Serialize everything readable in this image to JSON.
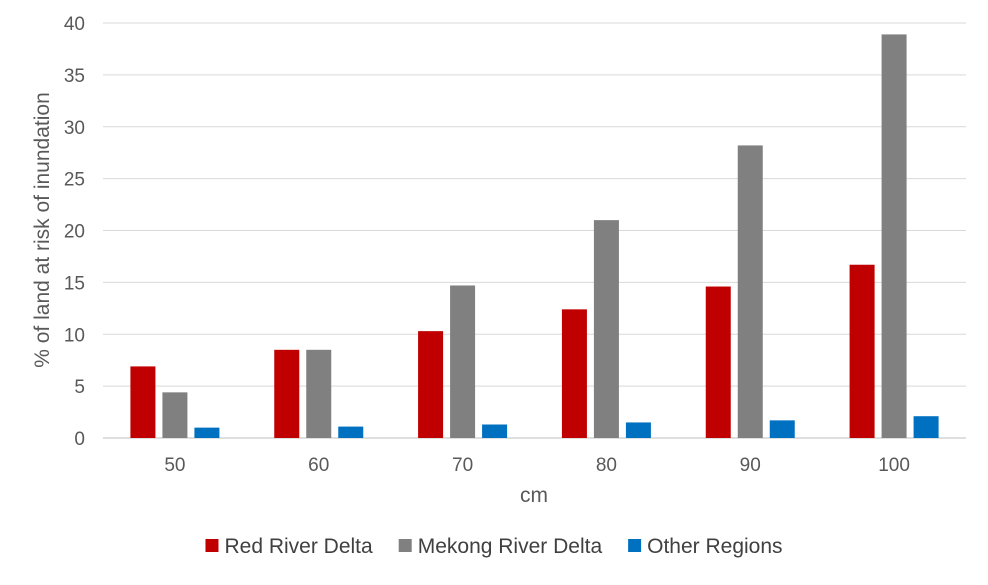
{
  "chart_data": {
    "type": "bar",
    "title": "",
    "xlabel": "cm",
    "ylabel": "% of land at risk of inundation",
    "categories": [
      "50",
      "60",
      "70",
      "80",
      "90",
      "100"
    ],
    "series": [
      {
        "name": "Red River Delta",
        "color": "#c00000",
        "values": [
          6.9,
          8.5,
          10.3,
          12.4,
          14.6,
          16.7
        ]
      },
      {
        "name": "Mekong River Delta",
        "color": "#808080",
        "values": [
          4.4,
          8.5,
          14.7,
          21.0,
          28.2,
          38.9
        ]
      },
      {
        "name": "Other Regions",
        "color": "#0070c0",
        "values": [
          1.0,
          1.1,
          1.3,
          1.5,
          1.7,
          2.1
        ]
      }
    ],
    "ylim": [
      0,
      40
    ],
    "yticks": [
      "0",
      "5",
      "10",
      "15",
      "20",
      "25",
      "30",
      "35",
      "40"
    ],
    "grid": true,
    "legend_position": "bottom"
  }
}
